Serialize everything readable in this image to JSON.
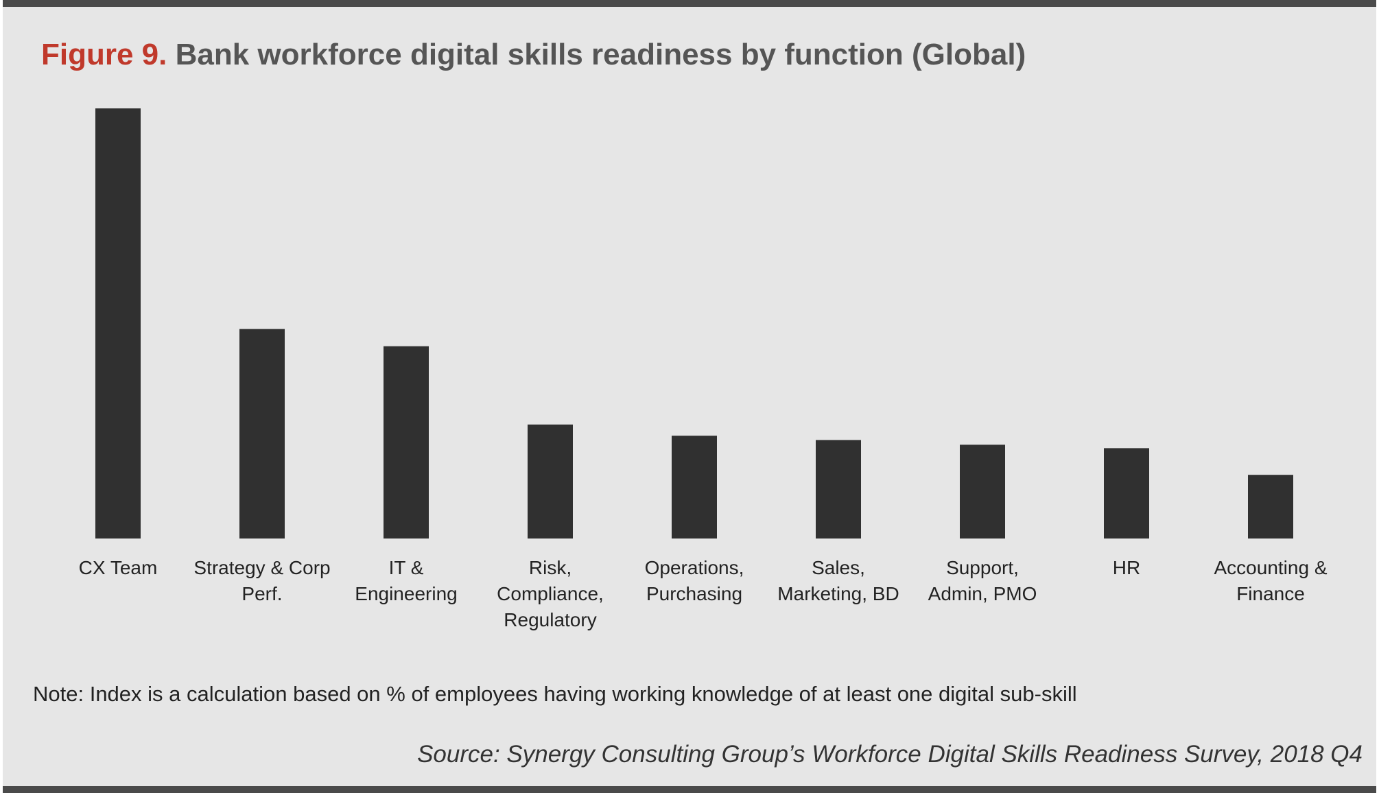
{
  "figure": {
    "label": "Figure 9.",
    "title": "Bank workforce digital skills readiness by function (Global)"
  },
  "note": "Note: Index is a calculation based on % of employees having working knowledge of at least one digital sub-skill",
  "source": "Source: Synergy Consulting Group’s Workforce Digital Skills Readiness Survey, 2018 Q4",
  "colors": {
    "bar": "#303030",
    "background": "#e6e6e6",
    "accent": "#c0392b",
    "rule": "#4a4a4a"
  },
  "chart_data": {
    "type": "bar",
    "title": "Bank workforce digital skills readiness by function (Global)",
    "xlabel": "",
    "ylabel": "",
    "ylim": [
      0,
      100
    ],
    "grid": false,
    "legend": "none",
    "categories": [
      "CX Team",
      "Strategy & Corp Perf.",
      "IT & Engineering",
      "Risk, Compliance, Regulatory",
      "Operations, Purchasing",
      "Sales, Marketing, BD",
      "Support, Admin, PMO",
      "HR",
      "Accounting & Finance"
    ],
    "category_lines": [
      [
        "CX Team"
      ],
      [
        "Strategy & Corp",
        "Perf."
      ],
      [
        "IT &",
        "Engineering"
      ],
      [
        "Risk,",
        "Compliance,",
        "Regulatory"
      ],
      [
        "Operations,",
        "Purchasing"
      ],
      [
        "Sales,",
        "Marketing, BD"
      ],
      [
        "Support,",
        "Admin, PMO"
      ],
      [
        "HR"
      ],
      [
        "Accounting &",
        "Finance"
      ]
    ],
    "values": [
      100,
      48.7,
      44.7,
      26.5,
      23.9,
      22.9,
      21.8,
      21.0,
      14.8
    ]
  }
}
